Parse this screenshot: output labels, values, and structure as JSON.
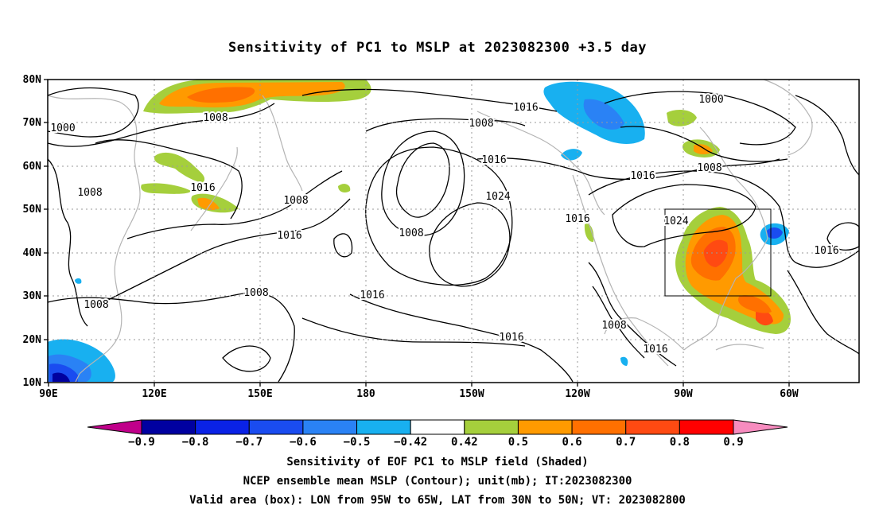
{
  "title": "Sensitivity of PC1 to MSLP at 2023082300 +3.5 day",
  "lat_labels": [
    "80N",
    "70N",
    "60N",
    "50N",
    "40N",
    "30N",
    "20N",
    "10N"
  ],
  "lon_labels": [
    "90E",
    "120E",
    "150E",
    "180",
    "150W",
    "120W",
    "90W",
    "60W"
  ],
  "contour_labels": [
    {
      "t": "1000"
    },
    {
      "t": "1008"
    },
    {
      "t": "1016"
    },
    {
      "t": "1008"
    },
    {
      "t": "1008"
    },
    {
      "t": "1016"
    },
    {
      "t": "1008"
    },
    {
      "t": "1016"
    },
    {
      "t": "1008"
    },
    {
      "t": "1016"
    },
    {
      "t": "1024"
    },
    {
      "t": "1008"
    },
    {
      "t": "1016"
    },
    {
      "t": "1016"
    },
    {
      "t": "1008"
    },
    {
      "t": "1016"
    },
    {
      "t": "1000"
    },
    {
      "t": "1008"
    },
    {
      "t": "1016"
    },
    {
      "t": "1024"
    },
    {
      "t": "1016"
    },
    {
      "t": "1008"
    },
    {
      "t": "1016"
    }
  ],
  "colorbar": {
    "labels": [
      "-0.9",
      "-0.8",
      "-0.7",
      "-0.6",
      "-0.5",
      "-0.42",
      "0.42",
      "0.5",
      "0.6",
      "0.7",
      "0.8",
      "0.9"
    ],
    "colors": [
      "#0000a0",
      "#0a22e6",
      "#1a4cf0",
      "#2a82f5",
      "#18b0f0",
      "#ffffff",
      "#a5cf3c",
      "#ff9a00",
      "#ff7000",
      "#ff4a12",
      "#ff0000"
    ],
    "under_color": "#c0008a",
    "over_color": "#f78cbf"
  },
  "captions": {
    "line1": "Sensitivity of EOF PC1 to MSLP field (Shaded)",
    "line2": "NCEP ensemble mean MSLP (Contour); unit(mb); IT:2023082300",
    "line3": "Valid area (box): LON from 95W to 65W, LAT from 30N to 50N; VT: 2023082800"
  }
}
